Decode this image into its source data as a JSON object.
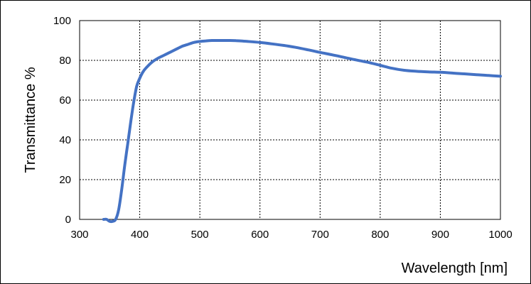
{
  "chart_data": {
    "type": "line",
    "title": "",
    "xlabel": "Wavelength [nm]",
    "ylabel": "Transmittance %",
    "xlim": [
      300,
      1000
    ],
    "ylim": [
      0,
      100
    ],
    "x_ticks": [
      300,
      400,
      500,
      600,
      700,
      800,
      900,
      1000
    ],
    "y_ticks": [
      0,
      20,
      40,
      60,
      80,
      100
    ],
    "grid": true,
    "line_color": "#4472C4",
    "series": [
      {
        "x": [
          340,
          345,
          350,
          355,
          360,
          365,
          370,
          375,
          380,
          385,
          390,
          395,
          400,
          405,
          410,
          420,
          430,
          440,
          450,
          460,
          470,
          480,
          490,
          500,
          510,
          520,
          530,
          540,
          550,
          560,
          580,
          600,
          620,
          640,
          660,
          680,
          700,
          720,
          740,
          760,
          780,
          800,
          820,
          840,
          860,
          880,
          900,
          920,
          940,
          960,
          980,
          1000
        ],
        "y": [
          0,
          0,
          -1,
          -1,
          0,
          5,
          15,
          27,
          38,
          49,
          59,
          67,
          71,
          74,
          76,
          79,
          81,
          82.5,
          84,
          85.5,
          87,
          88,
          89,
          89.5,
          89.8,
          90,
          90,
          90,
          90,
          89.9,
          89.5,
          89,
          88.3,
          87.5,
          86.5,
          85.3,
          84,
          82.8,
          81.5,
          80.2,
          79,
          77.5,
          76,
          75,
          74.5,
          74.2,
          74,
          73.6,
          73.2,
          72.8,
          72.4,
          72
        ]
      }
    ]
  }
}
